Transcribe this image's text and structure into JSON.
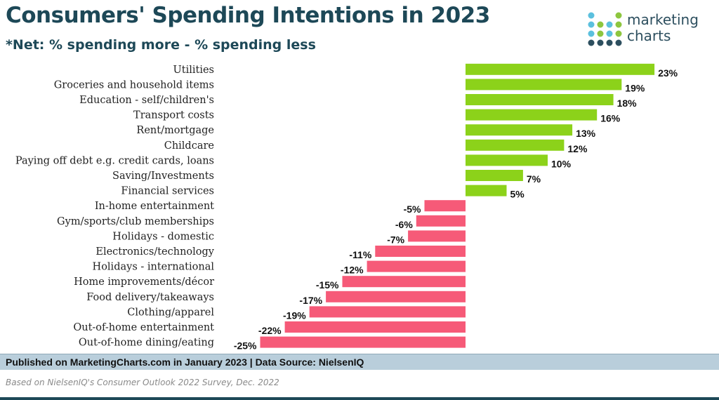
{
  "header": {
    "title": "Consumers' Spending Intentions in 2023",
    "subtitle": "*Net: % spending more - % spending less"
  },
  "logo": {
    "line1": "marketing",
    "line2": "charts",
    "icon": "marketing-charts-dot-logo-icon",
    "colors": [
      "#5bc0de",
      "#8dc63f",
      "#2d4f5f"
    ]
  },
  "chart_data": {
    "type": "bar",
    "orientation": "horizontal",
    "categories": [
      "Utilities",
      "Groceries and household items",
      "Education - self/children's",
      "Transport costs",
      "Rent/mortgage",
      "Childcare",
      "Paying off debt e.g. credit cards, loans",
      "Saving/Investments",
      "Financial services",
      "In-home entertainment",
      "Gym/sports/club memberships",
      "Holidays - domestic",
      "Electronics/technology",
      "Holidays - international",
      "Home improvements/décor",
      "Food delivery/takeaways",
      "Clothing/apparel",
      "Out-of-home entertainment",
      "Out-of-home dining/eating"
    ],
    "values": [
      23,
      19,
      18,
      16,
      13,
      12,
      10,
      7,
      5,
      -5,
      -6,
      -7,
      -11,
      -12,
      -15,
      -17,
      -19,
      -22,
      -25
    ],
    "value_labels": [
      "23%",
      "19%",
      "18%",
      "16%",
      "13%",
      "12%",
      "10%",
      "7%",
      "5%",
      "-5%",
      "-6%",
      "-7%",
      "-11%",
      "-12%",
      "-15%",
      "-17%",
      "-19%",
      "-22%",
      "-25%"
    ],
    "unit": "%",
    "xlim": [
      -30,
      30
    ],
    "grid": false,
    "legend": "none",
    "positive_color": "#8cd21a",
    "negative_color": "#f65a78"
  },
  "footer": {
    "text": "Published on MarketingCharts.com in January 2023 | Data Source: NielsenIQ",
    "note": "Based on NielsenIQ's Consumer Outlook 2022 Survey, Dec. 2022"
  }
}
